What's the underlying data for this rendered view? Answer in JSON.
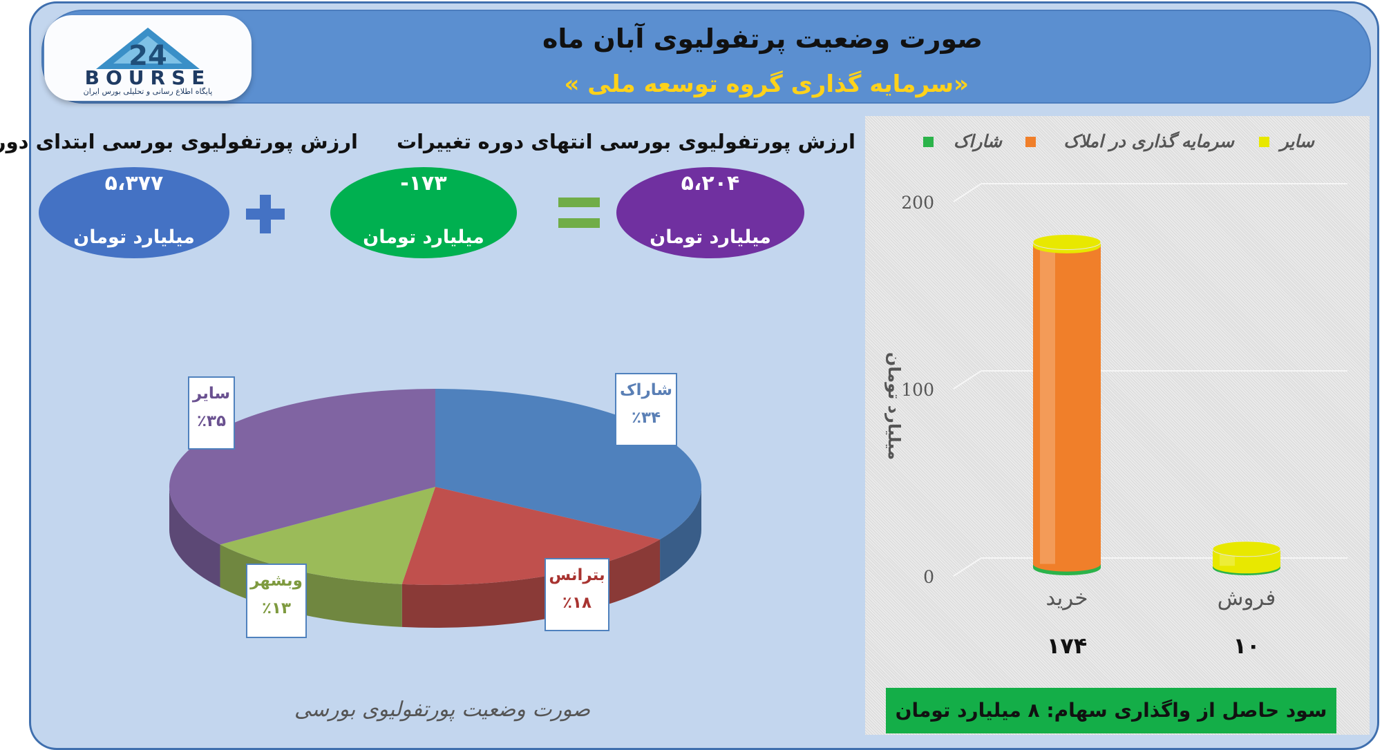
{
  "header": {
    "title": "صورت وضعیت پرتفولیوی آبان ماه",
    "subtitle": "«سرمایه گذاری گروه توسعه ملی »"
  },
  "logo": {
    "word": "BOURSE",
    "tagline": "پایگاه اطلاع رسانی و تحلیلی بورس ایران",
    "mark": "24"
  },
  "metrics": {
    "start": {
      "label": "ارزش پورتفولیوی بورسی ابتدای دوره",
      "value": "۵،۳۷۷",
      "unit": "میلیارد تومان",
      "color": "#4472c4"
    },
    "change": {
      "label": "تغییرات",
      "value": "-۱۷۳",
      "unit": "میلیارد تومان",
      "color": "#00b050"
    },
    "end": {
      "label": "ارزش پورتفولیوی بورسی انتهای دوره",
      "value": "۵،۲۰۴",
      "unit": "میلیارد تومان",
      "color": "#7030a0"
    },
    "plus_color": "#4472c4",
    "equals_color": "#70ad47"
  },
  "pie": {
    "caption": "صورت وضعیت پورتفولیوی بورسی",
    "labels": {
      "sharak": {
        "name": "شاراک",
        "pct": "٪۳۴"
      },
      "betrans": {
        "name": "بترانس",
        "pct": "٪۱۸"
      },
      "vebshahr": {
        "name": "وبشهر",
        "pct": "٪۱۳"
      },
      "sayer": {
        "name": "سایر",
        "pct": "٪۳۵"
      }
    }
  },
  "bar": {
    "legend": {
      "sharak": "شاراک",
      "property": "سرمایه گذاری در املاک",
      "other": "سایر"
    },
    "ylabel": "میلیارد تومان",
    "categories": {
      "buy": "خرید",
      "sell": "فروش"
    },
    "totals": {
      "buy": "۱۷۴",
      "sell": "۱۰"
    },
    "yticks": {
      "t0": "0",
      "t100": "100",
      "t200": "200"
    },
    "footer": "سود حاصل از واگذاری سهام: ۸ میلیارد تومان"
  },
  "chart_data": [
    {
      "type": "pie",
      "title": "صورت وضعیت پورتفولیوی بورسی",
      "categories": [
        "شاراک",
        "بترانس",
        "وبشهر",
        "سایر"
      ],
      "values": [
        34,
        18,
        13,
        35
      ],
      "colors": [
        "#4f81bd",
        "#c0504d",
        "#9bbb59",
        "#8064a2"
      ]
    },
    {
      "type": "bar",
      "categories": [
        "خرید",
        "فروش"
      ],
      "series": [
        {
          "name": "شاراک",
          "values": [
            2,
            1
          ],
          "color": "#2bb34a"
        },
        {
          "name": "سرمایه گذاری در املاک",
          "values": [
            170,
            0
          ],
          "color": "#f07f2a"
        },
        {
          "name": "سایر",
          "values": [
            2,
            9
          ],
          "color": "#e8e800"
        }
      ],
      "totals": [
        174,
        10
      ],
      "ylabel": "میلیارد تومان",
      "ylim": [
        0,
        200
      ],
      "yticks": [
        0,
        100,
        200
      ],
      "legend": "top",
      "grid": true
    }
  ]
}
